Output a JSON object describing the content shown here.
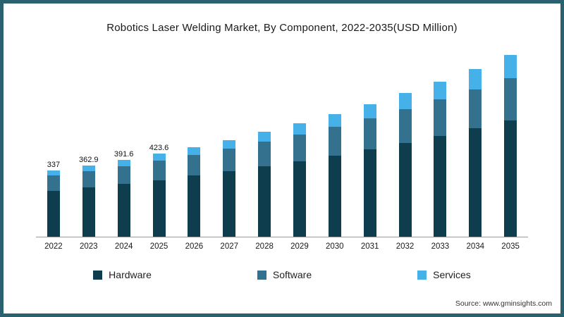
{
  "source": "Source: www.gminsights.com",
  "chart_data": {
    "type": "bar",
    "stacked": true,
    "title": "Robotics Laser Welding Market, By Component, 2022-2035(USD Million)",
    "xlabel": "",
    "ylabel": "",
    "grid": false,
    "legend_position": "bottom",
    "ylim": [
      0,
      960
    ],
    "categories": [
      "2022",
      "2023",
      "2024",
      "2025",
      "2026",
      "2027",
      "2028",
      "2029",
      "2030",
      "2031",
      "2032",
      "2033",
      "2034",
      "2035"
    ],
    "series": [
      {
        "name": "Hardware",
        "color": "#0e3e4e",
        "values": [
          236,
          252,
          270,
          290,
          312,
          335,
          360,
          387,
          416,
          447,
          480,
          516,
          554,
          595
        ]
      },
      {
        "name": "Software",
        "color": "#34718f",
        "values": [
          77,
          84,
          91,
          99,
          107,
          116,
          126,
          136,
          147,
          159,
          172,
          186,
          201,
          217
        ]
      },
      {
        "name": "Services",
        "color": "#45b1e8",
        "values": [
          24,
          26.9,
          30.6,
          34.6,
          39,
          44.5,
          50,
          57,
          64.5,
          73,
          82.5,
          92.5,
          104.5,
          118
        ]
      }
    ],
    "totals": [
      337,
      362.9,
      391.6,
      423.6,
      458,
      495.5,
      536,
      580,
      627.5,
      679,
      734.5,
      794.5,
      859.5,
      930
    ],
    "bar_total_labels": [
      "337",
      "362.9",
      "391.6",
      "423.6",
      "",
      "",
      "",
      "",
      "",
      "",
      "",
      "",
      "",
      ""
    ]
  }
}
